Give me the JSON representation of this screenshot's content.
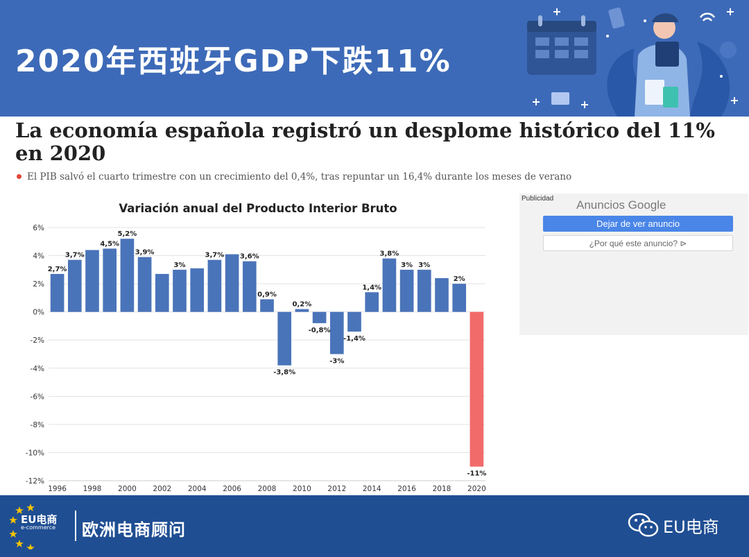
{
  "header": {
    "title": "2020年西班牙GDP下跌11%",
    "illustration_icon": "shopping-calendar-illustration"
  },
  "article": {
    "headline": "La economía española registró un desplome histórico del 11% en 2020",
    "subline": "El PIB salvó el cuarto trimestre con un crecimiento del 0,4%, tras repuntar un 16,4% durante los meses de verano"
  },
  "chart_data": {
    "type": "bar",
    "title": "Variación anual del Producto Interior Bruto",
    "categories": [
      "1996",
      "1997",
      "1998",
      "1999",
      "2000",
      "2001",
      "2002",
      "2003",
      "2004",
      "2005",
      "2006",
      "2007",
      "2008",
      "2009",
      "2010",
      "2011",
      "2012",
      "2013",
      "2014",
      "2015",
      "2016",
      "2017",
      "2018",
      "2019",
      "2020"
    ],
    "values": [
      2.7,
      3.7,
      4.4,
      4.5,
      5.2,
      3.9,
      2.7,
      3.0,
      3.1,
      3.7,
      4.1,
      3.6,
      0.9,
      -3.8,
      0.2,
      -0.8,
      -3.0,
      -1.4,
      1.4,
      3.8,
      3.0,
      3.0,
      2.4,
      2.0,
      -11.0
    ],
    "data_labels": [
      "2,7%",
      "3,7%",
      "",
      "4,5%",
      "5,2%",
      "3,9%",
      "",
      "3%",
      "",
      "3,7%",
      "",
      "3,6%",
      "0,9%",
      "-3,8%",
      "0,2%",
      "-0,8%",
      "-3%",
      "-1,4%",
      "1,4%",
      "3,8%",
      "3%",
      "3%",
      "",
      "2%",
      "-11%"
    ],
    "x_tick_labels": [
      "1996",
      "1998",
      "2000",
      "2002",
      "2004",
      "2006",
      "2008",
      "2010",
      "2012",
      "2014",
      "2016",
      "2018",
      "2020"
    ],
    "y_ticks": [
      6,
      4,
      2,
      0,
      -2,
      -4,
      -6,
      -8,
      -10,
      -12
    ],
    "y_tick_labels": [
      "6%",
      "4%",
      "2%",
      "0%",
      "-2%",
      "-4%",
      "-6%",
      "-8%",
      "-10%",
      "-12%"
    ],
    "ylim": [
      -12,
      6
    ],
    "xlabel": "",
    "ylabel": "",
    "grid": "horizontal",
    "colors": {
      "bar": "#4a74b9",
      "highlight": "#f26b6b",
      "grid": "#e3e3e3"
    },
    "highlight_category": "2020"
  },
  "ad": {
    "label": "Publicidad",
    "provider": "Anuncios Google",
    "stop_button": "Dejar de ver anuncio",
    "why_button": "¿Por qué este anuncio? ⊳"
  },
  "footer": {
    "logo_main": "EU电商",
    "logo_sub": "e-commerce",
    "brand": "欧洲电商顾问",
    "account": "EU电商",
    "account_icon": "wechat-icon"
  },
  "colors": {
    "header_bg": "#3d6ab8",
    "footer_bg": "#1f4e93"
  }
}
